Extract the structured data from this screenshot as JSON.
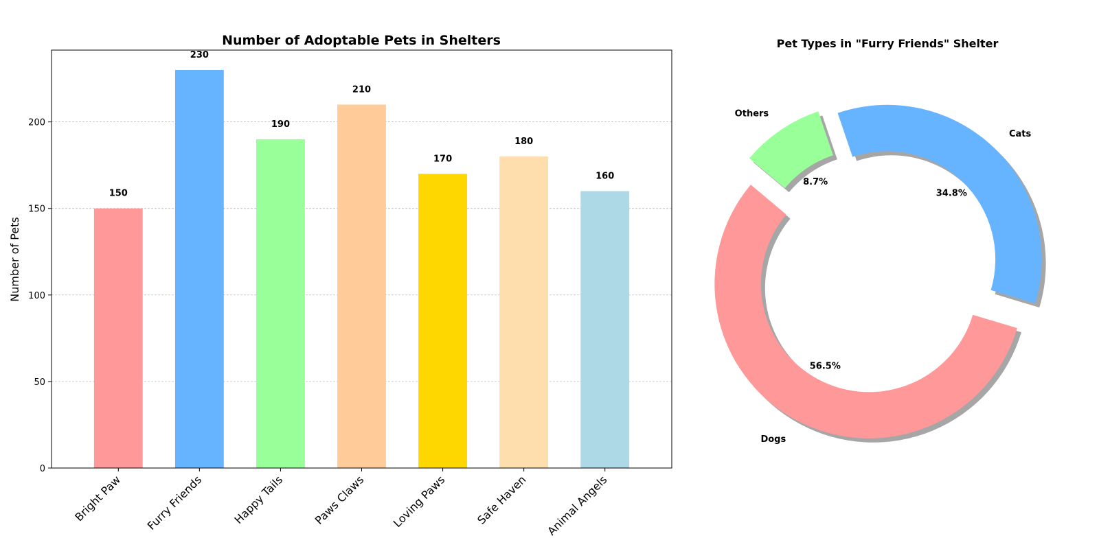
{
  "chart_data": [
    {
      "type": "bar",
      "title": "Number of Adoptable Pets in Shelters",
      "ylabel": "Number of Pets",
      "xlabel": "",
      "categories": [
        "Bright Paw",
        "Furry Friends",
        "Happy Tails",
        "Paws Claws",
        "Loving Paws",
        "Safe Haven",
        "Animal Angels"
      ],
      "values": [
        150,
        230,
        190,
        210,
        170,
        180,
        160
      ],
      "colors": [
        "#ff9999",
        "#66b3ff",
        "#99ff99",
        "#ffcc99",
        "#ffd700",
        "#ffdead",
        "#add8e6"
      ],
      "ylim": [
        0,
        241.5
      ],
      "yticks": [
        0,
        50,
        100,
        150,
        200
      ],
      "grid": "y-dashed",
      "show_value_labels": true
    },
    {
      "type": "pie",
      "style": "donut",
      "title": "Pet Types in \"Furry Friends\" Shelter",
      "labels": [
        "Dogs",
        "Cats",
        "Others"
      ],
      "values": [
        56.5,
        34.8,
        8.7
      ],
      "percent_labels": [
        "56.5%",
        "34.8%",
        "8.7%"
      ],
      "colors": [
        "#ff9999",
        "#66b3ff",
        "#99ff99"
      ],
      "explode": [
        0.1,
        0.1,
        0.1
      ],
      "shadow": true,
      "start_angle_deg": 140
    }
  ]
}
